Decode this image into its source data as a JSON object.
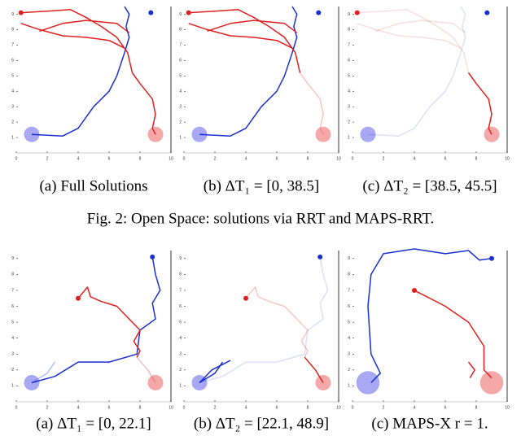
{
  "figures": [
    {
      "panels": [
        {
          "caption": "(a) Full Solutions",
          "xticks": [
            0,
            2,
            4,
            6,
            8,
            10
          ],
          "yticks": [
            1,
            2,
            3,
            4,
            5,
            6,
            7,
            8,
            9
          ]
        },
        {
          "caption": "(b) ΔT₁ = [0, 38.5]",
          "xticks": [
            0,
            2,
            4,
            6,
            8,
            10
          ],
          "yticks": [
            1,
            2,
            3,
            4,
            5,
            6,
            7,
            8,
            9
          ]
        },
        {
          "caption": "(c) ΔT₂ = [38.5, 45.5]",
          "xticks": [
            0,
            2,
            4,
            6,
            8,
            10
          ],
          "yticks": [
            1,
            2,
            3,
            4,
            5,
            6,
            7,
            8,
            9
          ]
        }
      ],
      "caption": "Fig. 2: Open Space: solutions via RRT and MAPS-RRT."
    },
    {
      "panels": [
        {
          "caption": "(a) ΔT₁ = [0, 22.1]",
          "xticks": [
            0,
            2,
            4,
            6,
            8,
            10
          ],
          "yticks": [
            1,
            2,
            3,
            4,
            5,
            6,
            7,
            8,
            9
          ]
        },
        {
          "caption": "(b) ΔT₂ = [22.1, 48.9]",
          "xticks": [
            0,
            2,
            4,
            6,
            8,
            10
          ],
          "yticks": [
            1,
            2,
            3,
            4,
            5,
            6,
            7,
            8,
            9
          ]
        },
        {
          "caption": "(c) MAPS-X r = 1.",
          "xticks": [
            0,
            2,
            4,
            6,
            8,
            10
          ],
          "yticks": [
            1,
            2,
            3,
            4,
            5,
            6,
            7,
            8,
            9
          ]
        }
      ]
    }
  ]
}
